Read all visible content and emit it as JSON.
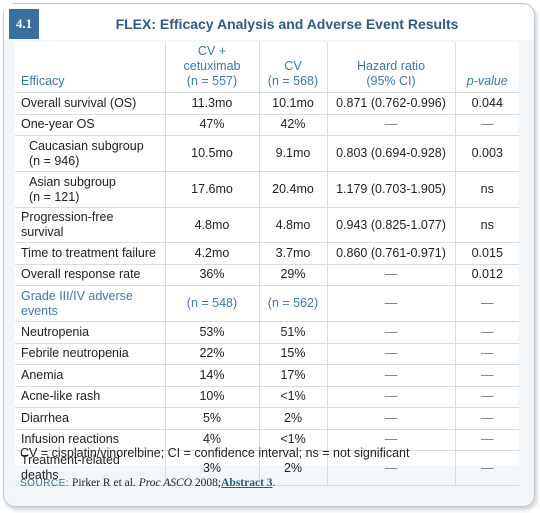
{
  "tag": "4.1",
  "title": "FLEX: Efficacy Analysis and Adverse Event Results",
  "columns": {
    "c0": "Efficacy",
    "c1": "CV + cetuximab\n(n = 557)",
    "c1a": "CV + cetuximab",
    "c1b": "(n = 557)",
    "c2a": "CV",
    "c2b": "(n = 568)",
    "c3a": "Hazard ratio",
    "c3b": "(95% CI)",
    "c4": "p-value"
  },
  "efficacy_rows": [
    {
      "label": "Overall survival (OS)",
      "a": "11.3mo",
      "b": "10.1mo",
      "hr": "0.871 (0.762-0.996)",
      "p": "0.044"
    },
    {
      "label": "One-year OS",
      "a": "47%",
      "b": "42%",
      "hr": "—",
      "p": "—"
    },
    {
      "label": "Caucasian subgroup",
      "label2": "(n = 946)",
      "a": "10.5mo",
      "b": "9.1mo",
      "hr": "0.803 (0.694-0.928)",
      "p": "0.003"
    },
    {
      "label": "Asian subgroup",
      "label2": "(n = 121)",
      "a": "17.6mo",
      "b": "20.4mo",
      "hr": "1.179 (0.703-1.905)",
      "p": "ns"
    },
    {
      "label": "Progression-free survival",
      "a": "4.8mo",
      "b": "4.8mo",
      "hr": "0.943 (0.825-1.077)",
      "p": "ns"
    },
    {
      "label": "Time to treatment failure",
      "a": "4.2mo",
      "b": "3.7mo",
      "hr": "0.860 (0.761-0.971)",
      "p": "0.015"
    },
    {
      "label": "Overall response rate",
      "a": "36%",
      "b": "29%",
      "hr": "—",
      "p": "0.012"
    }
  ],
  "ae_header": {
    "label": "Grade III/IV adverse",
    "label2": "events",
    "a": "(n = 548)",
    "b": "(n = 562)",
    "hr": "—",
    "p": "—"
  },
  "ae_rows": [
    {
      "label": "Neutropenia",
      "a": "53%",
      "b": "51%",
      "hr": "—",
      "p": "—"
    },
    {
      "label": "Febrile neutropenia",
      "a": "22%",
      "b": "15%",
      "hr": "—",
      "p": "—"
    },
    {
      "label": "Anemia",
      "a": "14%",
      "b": "17%",
      "hr": "—",
      "p": "—"
    },
    {
      "label": "Acne-like rash",
      "a": "10%",
      "b": "<1%",
      "hr": "—",
      "p": "—"
    },
    {
      "label": "Diarrhea",
      "a": "5%",
      "b": "2%",
      "hr": "—",
      "p": "—"
    },
    {
      "label": "Infusion reactions",
      "a": "4%",
      "b": "<1%",
      "hr": "—",
      "p": "—"
    },
    {
      "label": "Treatment-related deaths",
      "a": "3%",
      "b": "2%",
      "hr": "—",
      "p": "—"
    }
  ],
  "footnote": "CV = cisplatin/vinorelbine; CI = confidence interval; ns = not significant",
  "source": {
    "label": "SOURCE:",
    "authors": "Pirker R et al.",
    "journal": "Proc ASCO",
    "year": "2008;",
    "abstract": "Abstract 3",
    "end": "."
  },
  "colors": {
    "accent": "#3f78ac",
    "tag_bg": "#3a6e9f",
    "title": "#2d5a86"
  }
}
